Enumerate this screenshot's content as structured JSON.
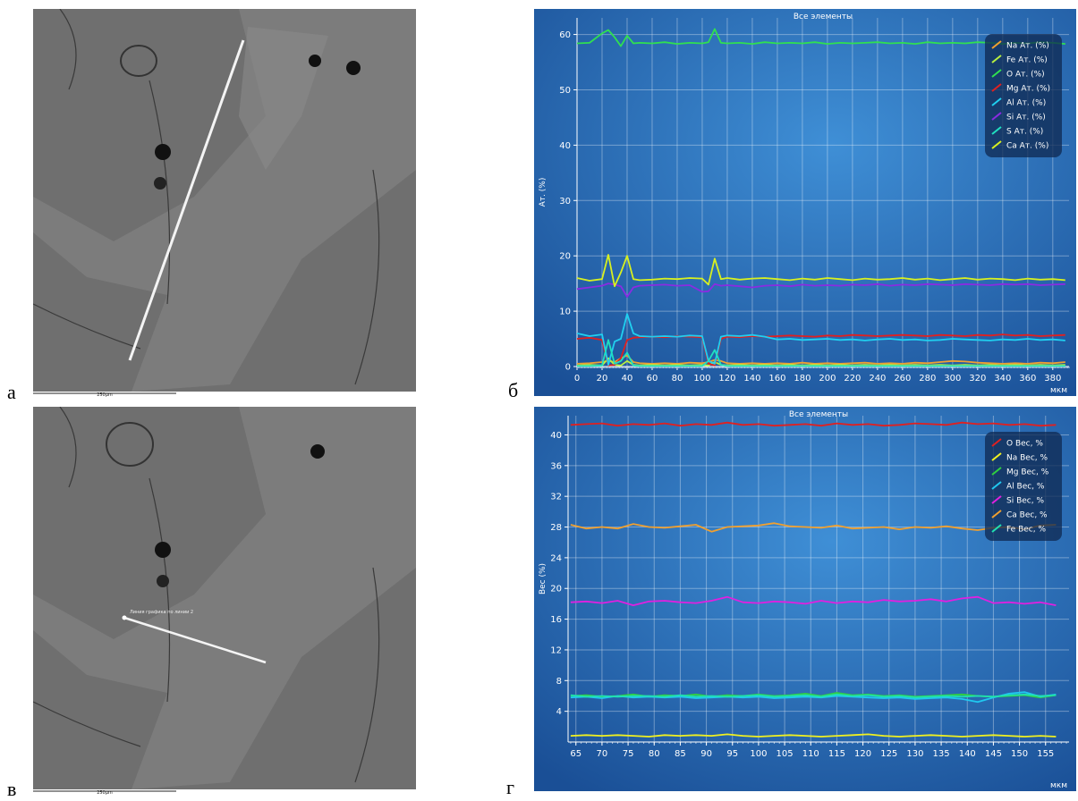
{
  "panels": {
    "labels": [
      "а",
      "б",
      "в",
      "г"
    ]
  },
  "images": [
    {
      "scale_bar": "250µm"
    },
    {
      "scale_bar": "250µm",
      "annotation": "Линия графика по линии 2"
    }
  ],
  "chart_data": [
    {
      "type": "line",
      "title": "Все элементы",
      "ylabel": "Ат. (%)",
      "xlabel": "мкм",
      "xlim": [
        0,
        393
      ],
      "ylim": [
        0,
        63
      ],
      "xticks": [
        0,
        20,
        40,
        60,
        80,
        100,
        120,
        140,
        160,
        180,
        200,
        220,
        240,
        260,
        280,
        300,
        320,
        340,
        360,
        380
      ],
      "yticks": [
        0,
        10,
        20,
        30,
        40,
        50,
        60
      ],
      "grid": true,
      "legend": "upper right",
      "x": [
        0,
        10,
        20,
        25,
        30,
        35,
        40,
        45,
        50,
        60,
        70,
        80,
        90,
        100,
        105,
        110,
        115,
        120,
        130,
        140,
        150,
        160,
        170,
        180,
        190,
        200,
        210,
        220,
        230,
        240,
        250,
        260,
        270,
        280,
        290,
        300,
        310,
        320,
        330,
        340,
        350,
        360,
        370,
        380,
        390
      ],
      "series": [
        {
          "name": "Na Ат. (%)",
          "color": "#f0a030",
          "values": [
            0.5,
            0.6,
            0.8,
            1.0,
            0.8,
            1.5,
            2.0,
            0.8,
            0.6,
            0.5,
            0.6,
            0.5,
            0.7,
            0.6,
            0.8,
            1.2,
            1.0,
            0.6,
            0.5,
            0.6,
            0.5,
            0.6,
            0.5,
            0.7,
            0.5,
            0.6,
            0.5,
            0.6,
            0.7,
            0.5,
            0.6,
            0.5,
            0.7,
            0.6,
            0.8,
            1.0,
            0.9,
            0.7,
            0.6,
            0.5,
            0.6,
            0.5,
            0.7,
            0.6,
            0.8
          ]
        },
        {
          "name": "Fe Ат. (%)",
          "color": "#b8f040",
          "values": [
            0.2,
            0.3,
            0.2,
            1.5,
            0.3,
            0.2,
            1.0,
            0.3,
            0.2,
            0.3,
            0.2,
            0.3,
            0.2,
            0.3,
            0.2,
            0.8,
            0.3,
            0.2,
            0.3,
            0.2,
            0.3,
            0.2,
            0.3,
            0.2,
            0.3,
            0.2,
            0.3,
            0.2,
            0.3,
            0.2,
            0.3,
            0.2,
            0.3,
            0.2,
            0.3,
            0.2,
            0.3,
            0.2,
            0.3,
            0.2,
            0.3,
            0.2,
            0.3,
            0.2,
            0.3
          ]
        },
        {
          "name": "O Ат. (%)",
          "color": "#30e050",
          "values": [
            58.4,
            58.5,
            60.2,
            60.8,
            59.5,
            57.9,
            59.8,
            58.4,
            58.5,
            58.4,
            58.6,
            58.3,
            58.5,
            58.4,
            58.6,
            61.0,
            58.5,
            58.4,
            58.5,
            58.3,
            58.6,
            58.4,
            58.5,
            58.4,
            58.6,
            58.3,
            58.5,
            58.4,
            58.5,
            58.6,
            58.4,
            58.5,
            58.3,
            58.6,
            58.4,
            58.5,
            58.4,
            58.6,
            58.5,
            58.3,
            58.5,
            58.4,
            58.6,
            58.5,
            58.3
          ]
        },
        {
          "name": "Mg Ат. (%)",
          "color": "#e02020",
          "values": [
            5.0,
            5.2,
            4.8,
            0.2,
            0.3,
            1.5,
            4.8,
            5.2,
            5.3,
            5.4,
            5.3,
            5.5,
            5.4,
            5.3,
            0.5,
            0.2,
            5.0,
            5.4,
            5.3,
            5.5,
            5.4,
            5.5,
            5.6,
            5.5,
            5.4,
            5.6,
            5.5,
            5.7,
            5.6,
            5.5,
            5.6,
            5.7,
            5.6,
            5.5,
            5.7,
            5.6,
            5.5,
            5.7,
            5.6,
            5.8,
            5.6,
            5.7,
            5.5,
            5.6,
            5.7
          ]
        },
        {
          "name": "Al Ат. (%)",
          "color": "#20d0f0",
          "values": [
            6.0,
            5.5,
            5.8,
            0.3,
            4.5,
            5.0,
            9.5,
            6.0,
            5.5,
            5.4,
            5.5,
            5.4,
            5.6,
            5.5,
            1.0,
            0.5,
            5.4,
            5.6,
            5.5,
            5.7,
            5.4,
            4.9,
            5.0,
            4.8,
            4.9,
            5.0,
            4.8,
            4.9,
            4.7,
            4.9,
            5.0,
            4.8,
            4.9,
            4.7,
            4.8,
            5.0,
            4.9,
            4.8,
            4.7,
            4.9,
            4.8,
            5.0,
            4.8,
            4.9,
            4.7
          ]
        },
        {
          "name": "Si Ат. (%)",
          "color": "#8a2be2",
          "values": [
            14.0,
            14.3,
            14.6,
            15.0,
            14.8,
            14.5,
            12.6,
            14.3,
            14.6,
            14.7,
            14.8,
            14.6,
            14.7,
            13.5,
            13.6,
            14.9,
            14.6,
            14.7,
            14.5,
            14.3,
            14.6,
            14.7,
            14.5,
            14.8,
            14.6,
            14.7,
            14.6,
            14.8,
            14.7,
            14.9,
            14.6,
            14.8,
            14.7,
            14.9,
            14.8,
            14.7,
            14.9,
            14.8,
            14.7,
            14.9,
            14.8,
            14.9,
            14.7,
            14.8,
            14.9
          ]
        },
        {
          "name": "S Ат. (%)",
          "color": "#20e0c0",
          "values": [
            0.1,
            0.1,
            0.2,
            4.8,
            0.5,
            1.0,
            2.5,
            0.2,
            0.1,
            0.1,
            0.1,
            0.1,
            0.1,
            0.1,
            1.0,
            3.0,
            0.3,
            0.1,
            0.1,
            0.1,
            0.1,
            0.1,
            0.1,
            0.1,
            0.1,
            0.1,
            0.1,
            0.1,
            0.1,
            0.1,
            0.1,
            0.1,
            0.1,
            0.1,
            0.1,
            0.1,
            0.1,
            0.1,
            0.1,
            0.1,
            0.1,
            0.1,
            0.1,
            0.1,
            0.1
          ]
        },
        {
          "name": "Ca Ат. (%)",
          "color": "#d8f020",
          "values": [
            16.0,
            15.5,
            15.8,
            20.2,
            14.5,
            17.0,
            20.0,
            15.8,
            15.6,
            15.7,
            15.9,
            15.8,
            16.0,
            15.9,
            14.8,
            19.5,
            15.8,
            16.0,
            15.7,
            15.9,
            16.0,
            15.8,
            15.6,
            15.9,
            15.7,
            16.0,
            15.8,
            15.6,
            15.9,
            15.7,
            15.8,
            16.0,
            15.7,
            15.9,
            15.6,
            15.8,
            16.0,
            15.7,
            15.9,
            15.8,
            15.6,
            15.9,
            15.7,
            15.8,
            15.6
          ]
        }
      ]
    },
    {
      "type": "line",
      "title": "Все элементы",
      "ylabel": "Вес (%)",
      "xlabel": "мкм",
      "xlim": [
        63.5,
        159.5
      ],
      "ylim": [
        0,
        42.5
      ],
      "xticks": [
        65,
        70,
        75,
        80,
        85,
        90,
        95,
        100,
        105,
        110,
        115,
        120,
        125,
        130,
        135,
        140,
        145,
        150,
        155
      ],
      "yticks": [
        4,
        8,
        12,
        16,
        20,
        24,
        28,
        32,
        36,
        40
      ],
      "grid": true,
      "legend": "upper right",
      "x": [
        64,
        67,
        70,
        73,
        76,
        79,
        82,
        85,
        88,
        91,
        94,
        97,
        100,
        103,
        106,
        109,
        112,
        115,
        118,
        121,
        124,
        127,
        130,
        133,
        136,
        139,
        142,
        145,
        148,
        151,
        154,
        157
      ],
      "series": [
        {
          "name": "O Вес, %",
          "color": "#e02020",
          "values": [
            41.3,
            41.4,
            41.5,
            41.2,
            41.4,
            41.3,
            41.5,
            41.2,
            41.4,
            41.3,
            41.6,
            41.3,
            41.4,
            41.2,
            41.3,
            41.4,
            41.2,
            41.5,
            41.3,
            41.4,
            41.2,
            41.3,
            41.5,
            41.4,
            41.3,
            41.6,
            41.4,
            41.5,
            41.3,
            41.4,
            41.2,
            41.3
          ]
        },
        {
          "name": "Na Вес, %",
          "color": "#f0f020",
          "values": [
            0.8,
            0.9,
            0.8,
            0.9,
            0.8,
            0.7,
            0.9,
            0.8,
            0.9,
            0.8,
            1.0,
            0.8,
            0.7,
            0.8,
            0.9,
            0.8,
            0.7,
            0.8,
            0.9,
            1.0,
            0.8,
            0.7,
            0.8,
            0.9,
            0.8,
            0.7,
            0.8,
            0.9,
            0.8,
            0.7,
            0.8,
            0.7
          ]
        },
        {
          "name": "Mg Вес, %",
          "color": "#30d040",
          "values": [
            6.0,
            6.1,
            5.9,
            6.0,
            6.2,
            5.9,
            6.1,
            6.0,
            6.2,
            5.9,
            6.1,
            6.0,
            6.2,
            6.0,
            6.1,
            6.3,
            6.0,
            6.4,
            6.1,
            6.2,
            6.0,
            6.1,
            5.9,
            6.0,
            6.1,
            6.2,
            6.0,
            5.9,
            6.0,
            6.1,
            5.8,
            6.1
          ]
        },
        {
          "name": "Al Вес, %",
          "color": "#20c8f0",
          "values": [
            5.8,
            5.9,
            5.7,
            6.0,
            5.8,
            5.9,
            5.8,
            5.9,
            5.7,
            5.8,
            5.9,
            5.8,
            5.9,
            5.7,
            5.8,
            5.9,
            5.8,
            6.0,
            5.9,
            5.8,
            5.7,
            5.8,
            5.6,
            5.7,
            5.8,
            5.6,
            5.2,
            5.8,
            6.3,
            6.5,
            5.9,
            6.2
          ]
        },
        {
          "name": "Si Вес, %",
          "color": "#e020e0",
          "values": [
            18.2,
            18.3,
            18.1,
            18.4,
            17.8,
            18.3,
            18.4,
            18.2,
            18.1,
            18.4,
            18.9,
            18.2,
            18.1,
            18.3,
            18.2,
            18.0,
            18.4,
            18.1,
            18.3,
            18.2,
            18.5,
            18.3,
            18.4,
            18.6,
            18.3,
            18.7,
            18.9,
            18.1,
            18.2,
            18.0,
            18.2,
            17.8
          ]
        },
        {
          "name": "Ca Вес, %",
          "color": "#f0a030",
          "values": [
            28.3,
            27.8,
            28.0,
            27.8,
            28.4,
            28.0,
            27.9,
            28.1,
            28.3,
            27.4,
            28.0,
            28.1,
            28.2,
            28.5,
            28.1,
            28.0,
            27.9,
            28.2,
            27.8,
            27.9,
            28.0,
            27.7,
            28.0,
            27.9,
            28.1,
            27.8,
            27.6,
            27.9,
            28.0,
            27.7,
            28.2,
            28.3
          ]
        },
        {
          "name": "Fe Вес, %",
          "color": "#20e0b0",
          "values": [
            6.1,
            5.9,
            6.0,
            5.9,
            6.0,
            6.0,
            5.9,
            6.1,
            5.9,
            6.0,
            5.9,
            6.0,
            6.1,
            5.9,
            6.0,
            6.1,
            5.9,
            6.2,
            6.0,
            6.1,
            5.9,
            6.0,
            5.8,
            5.9,
            6.0,
            5.9,
            6.0,
            5.9,
            6.1,
            6.2,
            6.0,
            6.1
          ]
        }
      ]
    }
  ]
}
